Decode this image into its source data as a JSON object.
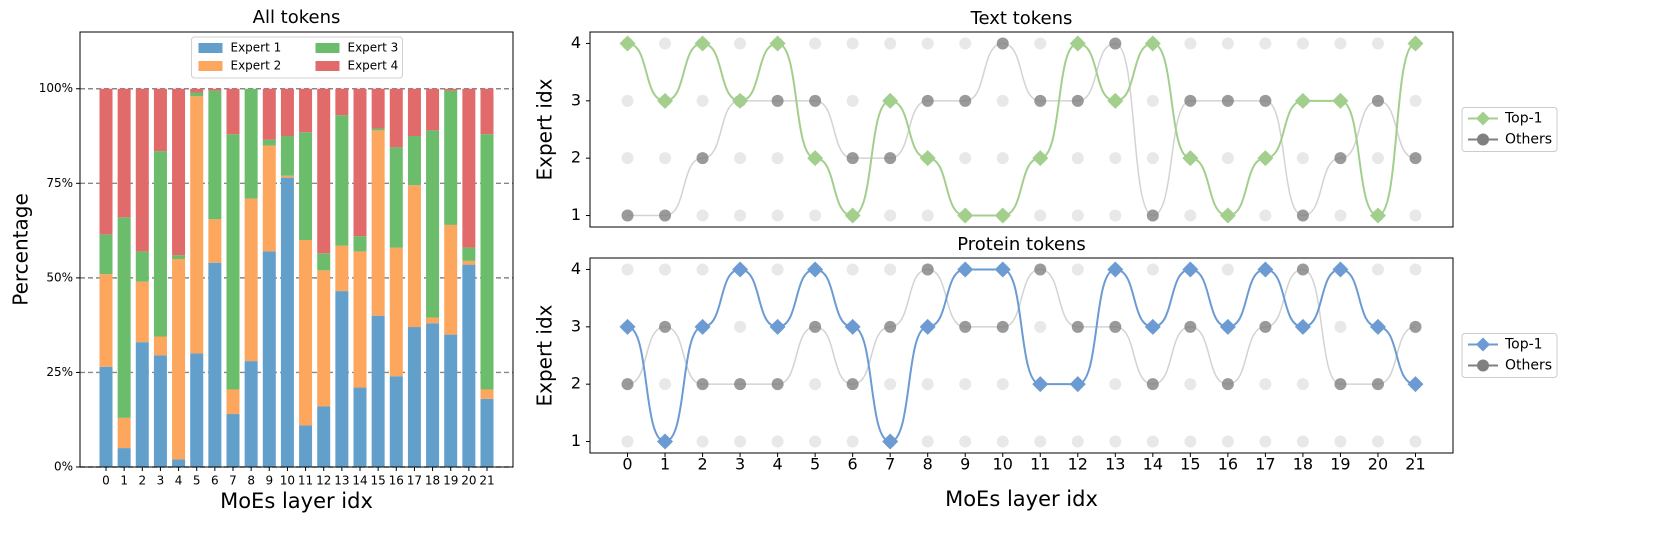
{
  "chart_data": [
    {
      "type": "bar",
      "stacked": true,
      "title": "All tokens",
      "x_label": "MoEs layer idx",
      "y_label": "Percentage",
      "categories": [
        "0",
        "1",
        "2",
        "3",
        "4",
        "5",
        "6",
        "7",
        "8",
        "9",
        "10",
        "11",
        "12",
        "13",
        "14",
        "15",
        "16",
        "17",
        "18",
        "19",
        "20",
        "21"
      ],
      "series": [
        {
          "name": "Expert 1",
          "color": "#629fca",
          "values": [
            26.5,
            5,
            33,
            29.5,
            2,
            30,
            54,
            14,
            28,
            57,
            76.5,
            11,
            16,
            46.5,
            21,
            40,
            24,
            37,
            38,
            35,
            53.5,
            18
          ]
        },
        {
          "name": "Expert 2",
          "color": "#fda65d",
          "values": [
            24.5,
            8,
            16,
            5,
            53,
            68,
            11.5,
            6.5,
            43,
            28,
            0.5,
            49,
            36,
            12,
            36,
            49,
            34,
            37.5,
            1.5,
            29,
            1,
            2.5
          ]
        },
        {
          "name": "Expert 3",
          "color": "#6bbc6b",
          "values": [
            10.5,
            53,
            8,
            49,
            1,
            1,
            34,
            67.5,
            29,
            1.5,
            10.5,
            28.5,
            4.5,
            34.5,
            4,
            0.5,
            26.5,
            13,
            49.5,
            35.5,
            3.5,
            67.5
          ]
        },
        {
          "name": "Expert 4",
          "color": "#e16a6a",
          "values": [
            38.5,
            34,
            43,
            16.5,
            44,
            1,
            0.5,
            12,
            0,
            13.5,
            12.5,
            11.5,
            43.5,
            7,
            39,
            10.5,
            15.5,
            12.5,
            11,
            0.5,
            42,
            12
          ]
        }
      ],
      "ylim": [
        0,
        115
      ],
      "yticks": [
        {
          "value": 0,
          "label": "0%"
        },
        {
          "value": 25,
          "label": "25%"
        },
        {
          "value": 50,
          "label": "50%"
        },
        {
          "value": 75,
          "label": "75%"
        },
        {
          "value": 100,
          "label": "100%"
        }
      ],
      "grid": true,
      "legend": "upper center"
    },
    {
      "type": "line",
      "title": "Text tokens",
      "y_label": "Expert idx",
      "x": [
        0,
        1,
        2,
        3,
        4,
        5,
        6,
        7,
        8,
        9,
        10,
        11,
        12,
        13,
        14,
        15,
        16,
        17,
        18,
        19,
        20,
        21
      ],
      "series": [
        {
          "name": "Top-1",
          "color": "#a3cf8d",
          "marker": "diamond",
          "values": [
            4,
            3,
            4,
            3,
            4,
            2,
            1,
            3,
            2,
            1,
            1,
            2,
            4,
            3,
            4,
            2,
            1,
            2,
            3,
            3,
            1,
            4
          ]
        },
        {
          "name": "Others",
          "color": "#808080",
          "marker": "circle",
          "values": [
            1,
            1,
            2,
            3,
            3,
            3,
            2,
            2,
            3,
            3,
            4,
            3,
            3,
            4,
            1,
            3,
            3,
            3,
            1,
            2,
            3,
            2
          ]
        }
      ],
      "xlim": [
        -1,
        22
      ],
      "ylim": [
        4.2,
        0.8
      ],
      "yticks": [
        1,
        2,
        3,
        4
      ],
      "legend": "outside right"
    },
    {
      "type": "line",
      "title": "Protein tokens",
      "y_label": "Expert idx",
      "x_label": "MoEs layer idx",
      "x": [
        0,
        1,
        2,
        3,
        4,
        5,
        6,
        7,
        8,
        9,
        10,
        11,
        12,
        13,
        14,
        15,
        16,
        17,
        18,
        19,
        20,
        21
      ],
      "series": [
        {
          "name": "Top-1",
          "color": "#6b9bd2",
          "marker": "diamond",
          "values": [
            3,
            1,
            3,
            4,
            3,
            4,
            3,
            1,
            3,
            4,
            4,
            2,
            2,
            4,
            3,
            4,
            3,
            4,
            3,
            4,
            3,
            2
          ]
        },
        {
          "name": "Others",
          "color": "#808080",
          "marker": "circle",
          "values": [
            2,
            3,
            2,
            2,
            2,
            3,
            2,
            3,
            4,
            3,
            3,
            4,
            3,
            3,
            2,
            3,
            2,
            3,
            4,
            2,
            2,
            3
          ]
        }
      ],
      "xlim": [
        -1,
        22
      ],
      "ylim": [
        4.2,
        0.8
      ],
      "yticks": [
        1,
        2,
        3,
        4
      ],
      "xticks": [
        0,
        1,
        2,
        3,
        4,
        5,
        6,
        7,
        8,
        9,
        10,
        11,
        12,
        13,
        14,
        15,
        16,
        17,
        18,
        19,
        20,
        21
      ],
      "legend": "outside right"
    }
  ]
}
